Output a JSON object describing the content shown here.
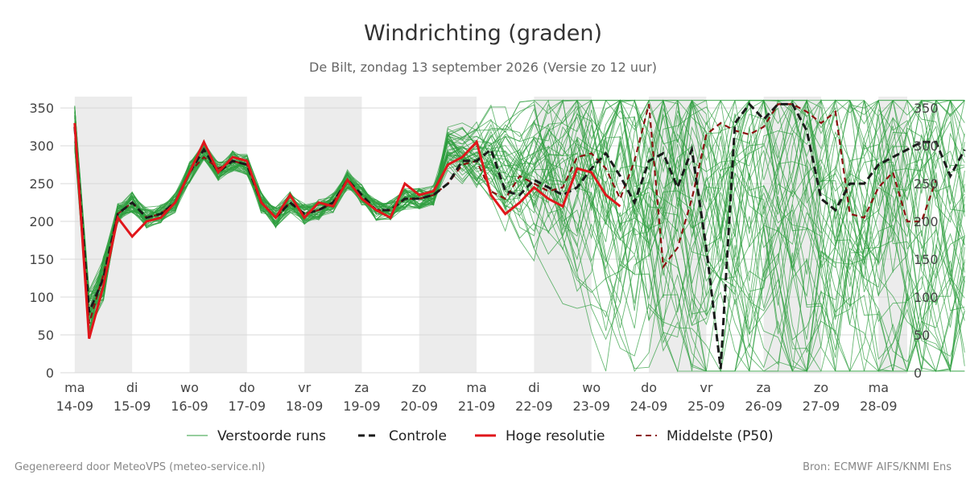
{
  "colors": {
    "ensemble": "#2e9e3e",
    "control": "#1a1a1a",
    "hires": "#e0161b",
    "median": "#8b0f0f",
    "shade": "#ececec",
    "grid": "#d9d9d9"
  },
  "footer": {
    "left": "Gegenereerd door MeteoVPS (meteo-service.nl)",
    "right": "Bron: ECMWF AIFS/KNMI Ens"
  },
  "chart_data": {
    "type": "line",
    "title": "Windrichting (graden)",
    "subtitle": "De Bilt, zondag 13 september 2026 (Versie zo 12 uur)",
    "ylim": [
      0,
      365
    ],
    "yticks": [
      0,
      50,
      100,
      150,
      200,
      250,
      300,
      350
    ],
    "xlim": [
      -0.25,
      14.5
    ],
    "x_step_days": 0.25,
    "x_ticks": [
      {
        "day": "ma",
        "date": "14-09"
      },
      {
        "day": "di",
        "date": "15-09"
      },
      {
        "day": "wo",
        "date": "16-09"
      },
      {
        "day": "do",
        "date": "17-09"
      },
      {
        "day": "vr",
        "date": "18-09"
      },
      {
        "day": "za",
        "date": "19-09"
      },
      {
        "day": "zo",
        "date": "20-09"
      },
      {
        "day": "ma",
        "date": "21-09"
      },
      {
        "day": "di",
        "date": "22-09"
      },
      {
        "day": "wo",
        "date": "23-09"
      },
      {
        "day": "do",
        "date": "24-09"
      },
      {
        "day": "vr",
        "date": "25-09"
      },
      {
        "day": "za",
        "date": "26-09"
      },
      {
        "day": "zo",
        "date": "27-09"
      },
      {
        "day": "ma",
        "date": "28-09"
      }
    ],
    "shaded_days": [
      "14-09",
      "16-09",
      "18-09",
      "20-09",
      "22-09",
      "24-09",
      "26-09",
      "28-09"
    ],
    "legend": {
      "position": "bottom",
      "entries": [
        "Verstoorde runs",
        "Controle",
        "Hoge resolutie",
        "Middelste (P50)"
      ]
    },
    "series": [
      {
        "name": "Controle",
        "style": "dashed",
        "values": [
          325,
          80,
          125,
          210,
          225,
          205,
          210,
          225,
          265,
          295,
          265,
          280,
          275,
          225,
          205,
          225,
          210,
          215,
          225,
          255,
          235,
          215,
          215,
          230,
          230,
          235,
          250,
          280,
          280,
          295,
          240,
          235,
          255,
          245,
          235,
          245,
          270,
          290,
          260,
          225,
          280,
          290,
          245,
          295,
          165,
          5,
          330,
          355,
          335,
          355,
          355,
          320,
          230,
          215,
          250,
          250,
          275,
          285,
          295,
          305,
          305,
          260,
          295
        ]
      },
      {
        "name": "Hoge resolutie",
        "style": "solid",
        "values": [
          330,
          45,
          115,
          205,
          180,
          200,
          205,
          225,
          265,
          305,
          265,
          285,
          280,
          225,
          205,
          235,
          205,
          225,
          220,
          255,
          230,
          215,
          205,
          250,
          235,
          240,
          275,
          285,
          305,
          235,
          210,
          225,
          245,
          230,
          220,
          270,
          265,
          235,
          220
        ]
      },
      {
        "name": "Middelste (P50)",
        "style": "dashed",
        "values": [
          325,
          65,
          130,
          210,
          225,
          205,
          210,
          225,
          265,
          285,
          270,
          280,
          275,
          225,
          205,
          225,
          210,
          215,
          225,
          255,
          230,
          215,
          215,
          230,
          230,
          235,
          250,
          275,
          280,
          240,
          230,
          260,
          250,
          240,
          245,
          285,
          290,
          270,
          230,
          280,
          355,
          140,
          165,
          230,
          315,
          330,
          320,
          315,
          325,
          355,
          355,
          345,
          330,
          345,
          210,
          205,
          245,
          265,
          200,
          200,
          255
        ]
      }
    ],
    "ensemble_runs": {
      "name": "Verstoorde runs",
      "count": 50,
      "note_values": "Individual perturbed runs; values follow the pattern drawn in the original plot (tight cluster until 20-09, widely spread afterwards)."
    }
  }
}
